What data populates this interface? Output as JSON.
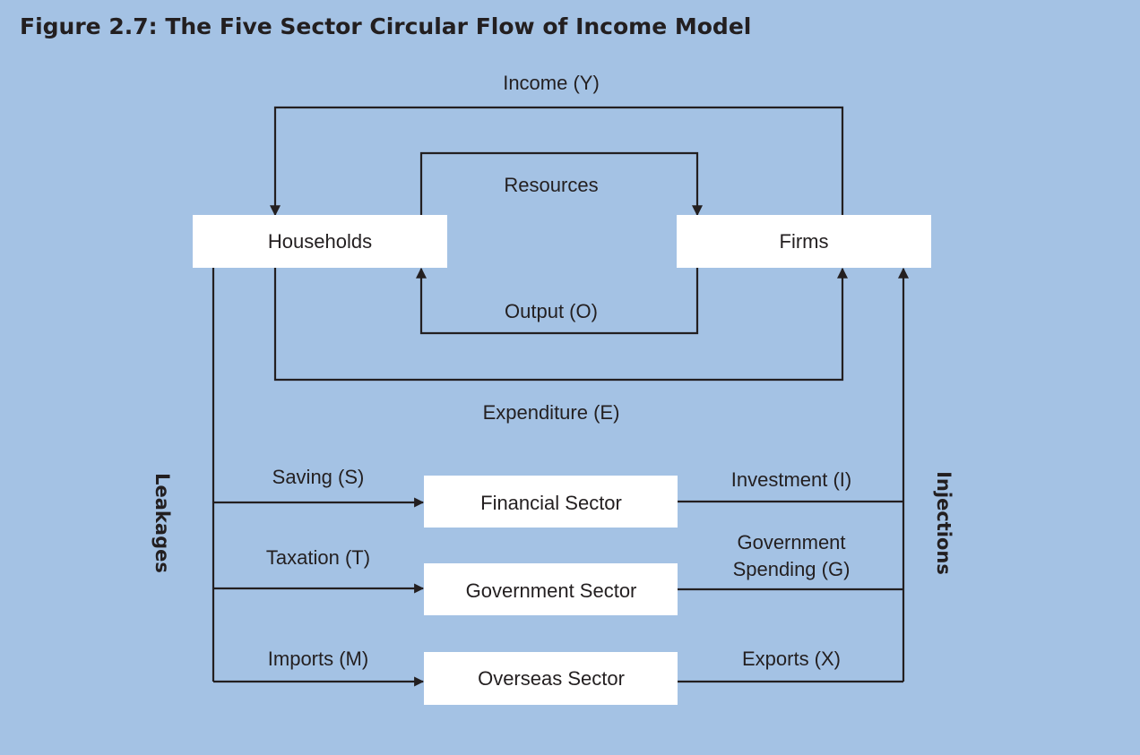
{
  "title": "Figure 2.7: The Five Sector Circular Flow of Income Model",
  "sectors": {
    "households": "Households",
    "firms": "Firms",
    "financial": "Financial Sector",
    "government": "Government Sector",
    "overseas": "Overseas Sector"
  },
  "flows": {
    "income": "Income (Y)",
    "resources": "Resources",
    "output": "Output (O)",
    "expenditure": "Expenditure (E)",
    "saving": "Saving (S)",
    "taxation": "Taxation (T)",
    "imports": "Imports (M)",
    "investment": "Investment (I)",
    "government_spending_line1": "Government",
    "government_spending_line2": "Spending (G)",
    "exports": "Exports (X)"
  },
  "sides": {
    "leakages": "Leakages",
    "injections": "Injections"
  },
  "colors": {
    "background": "#a4c2e4",
    "box": "#ffffff",
    "line": "#231f20"
  }
}
